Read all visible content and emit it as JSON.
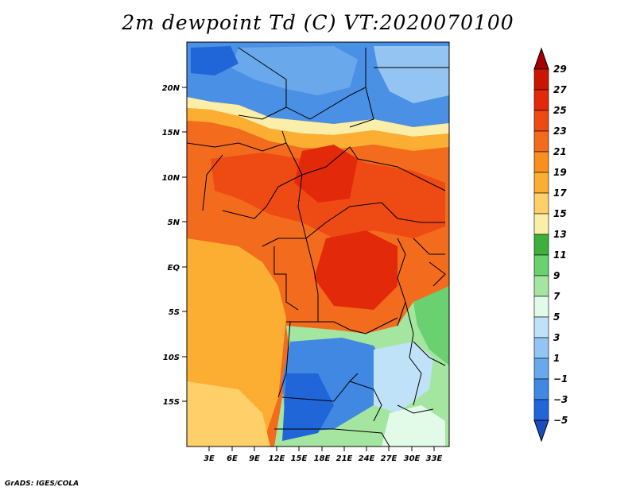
{
  "title": "2m dewpoint Td (C) VT:2020070100",
  "footer": "GrADS: IGES/COLA",
  "map": {
    "lon_range": [
      0,
      35
    ],
    "lat_range": [
      -20,
      25
    ],
    "lat_ticks": [
      {
        "value": 20,
        "label": "20N"
      },
      {
        "value": 15,
        "label": "15N"
      },
      {
        "value": 10,
        "label": "10N"
      },
      {
        "value": 5,
        "label": "5N"
      },
      {
        "value": 0,
        "label": "EQ"
      },
      {
        "value": -5,
        "label": "5S"
      },
      {
        "value": -10,
        "label": "10S"
      },
      {
        "value": -15,
        "label": "15S"
      }
    ],
    "lon_ticks": [
      {
        "value": 3,
        "label": "3E"
      },
      {
        "value": 6,
        "label": "6E"
      },
      {
        "value": 9,
        "label": "9E"
      },
      {
        "value": 12,
        "label": "12E"
      },
      {
        "value": 15,
        "label": "15E"
      },
      {
        "value": 18,
        "label": "18E"
      },
      {
        "value": 21,
        "label": "21E"
      },
      {
        "value": 24,
        "label": "24E"
      },
      {
        "value": 27,
        "label": "27E"
      },
      {
        "value": 30,
        "label": "30E"
      },
      {
        "value": 33,
        "label": "33E"
      }
    ]
  },
  "colorbar": {
    "labels": [
      "29",
      "27",
      "25",
      "23",
      "21",
      "19",
      "17",
      "15",
      "13",
      "11",
      "9",
      "7",
      "5",
      "3",
      "1",
      "−1",
      "−3",
      "−5"
    ],
    "colors": [
      "#a50000",
      "#c81600",
      "#e22a0a",
      "#ee4b14",
      "#f36b1c",
      "#f9901e",
      "#fcae32",
      "#ffd06a",
      "#fbeea8",
      "#3cb03a",
      "#6ad070",
      "#a4e6a0",
      "#e2fbe8",
      "#c0e2f8",
      "#94c4f2",
      "#6aa8ec",
      "#4088e2",
      "#2066d8",
      "#1a4cc0"
    ]
  }
}
